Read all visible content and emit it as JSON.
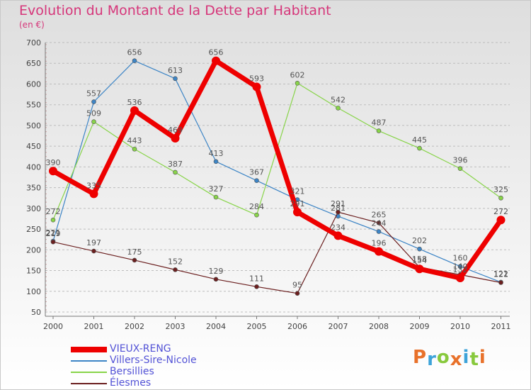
{
  "chart_data": {
    "type": "line",
    "title": "Evolution du Montant de la Dette par Habitant",
    "subtitle": "(en €)",
    "x": [
      "2000",
      "2001",
      "2002",
      "2003",
      "2004",
      "2005",
      "2006",
      "2007",
      "2008",
      "2009",
      "2010",
      "2011"
    ],
    "ylim": [
      50,
      700
    ],
    "yticks": [
      50,
      100,
      150,
      200,
      250,
      300,
      350,
      400,
      450,
      500,
      550,
      600,
      650,
      700
    ],
    "grid": "dashed-horizontal",
    "legend_position": "bottom-left",
    "series": [
      {
        "name": "Villers-Sire-Nicole",
        "color": "#3d85c6",
        "values": [
          221,
          557,
          656,
          613,
          413,
          367,
          321,
          281,
          244,
          202,
          160,
          122
        ],
        "labels": [
          "221",
          "557",
          "656",
          "613",
          "413",
          "367",
          "321",
          "281",
          "244",
          "202",
          "160",
          "122"
        ]
      },
      {
        "name": "Bersillies",
        "color": "#88d449",
        "values": [
          272,
          509,
          443,
          387,
          327,
          284,
          602,
          542,
          487,
          445,
          396,
          325
        ],
        "labels": [
          "272",
          "509",
          "443",
          "387",
          "327",
          "284",
          "602",
          "542",
          "487",
          "445",
          "396",
          "325"
        ]
      },
      {
        "name": "Élesmes",
        "color": "#6b1f1f",
        "values": [
          219,
          197,
          175,
          152,
          129,
          111,
          95,
          291,
          265,
          158,
          140,
          121
        ],
        "labels": [
          "219",
          "197",
          "175",
          "152",
          "129",
          "111",
          "95",
          "291",
          "265",
          "158",
          "140",
          "121"
        ]
      },
      {
        "name": "VIEUX-RENG",
        "color": "#ee0000",
        "values": [
          390,
          335,
          536,
          469,
          656,
          593,
          291,
          234,
          196,
          154,
          132,
          272
        ],
        "labels": [
          "390",
          "335",
          "536",
          "469",
          "656",
          "593",
          "291",
          "234",
          "196",
          "154",
          "132",
          "272"
        ]
      }
    ],
    "legend_order": [
      "VIEUX-RENG",
      "Villers-Sire-Nicole",
      "Bersillies",
      "Élesmes"
    ]
  },
  "brand": {
    "text": "Proxiti",
    "colors": [
      "#e8712a",
      "#3da3d9",
      "#88c93d",
      "#e8712a",
      "#3da3d9",
      "#88c93d",
      "#e8712a"
    ]
  }
}
